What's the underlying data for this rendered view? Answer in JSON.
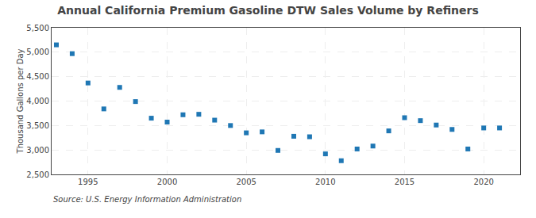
{
  "chart_data": {
    "type": "scatter",
    "title": "Annual California Premium Gasoline DTW Sales Volume by Refiners",
    "ylabel": "Thousand Gallons per Day",
    "annotations": [
      "Source: U.S. Energy Information Administration"
    ],
    "x": [
      1993,
      1994,
      1995,
      1996,
      1997,
      1998,
      1999,
      2000,
      2001,
      2002,
      2003,
      2004,
      2005,
      2006,
      2007,
      2008,
      2009,
      2010,
      2011,
      2012,
      2013,
      2014,
      2015,
      2016,
      2017,
      2018,
      2019,
      2020,
      2021
    ],
    "values": [
      5150,
      4970,
      4370,
      3840,
      4280,
      3990,
      3650,
      3570,
      3720,
      3730,
      3610,
      3500,
      3350,
      3370,
      2990,
      3280,
      3270,
      2920,
      2780,
      3020,
      3080,
      3390,
      3660,
      3600,
      3510,
      3420,
      3020,
      3450,
      3450
    ],
    "marker": "square",
    "xlim": [
      1992.7,
      2022.3
    ],
    "xticks": [
      1995,
      2000,
      2005,
      2010,
      2015,
      2020
    ],
    "ylim": [
      2500,
      5500
    ],
    "yticks": [
      {
        "value": 2500,
        "label": "2,500"
      },
      {
        "value": 3000,
        "label": "3,000"
      },
      {
        "value": 3500,
        "label": "3,500"
      },
      {
        "value": 4000,
        "label": "4,000"
      },
      {
        "value": 4500,
        "label": "4,500"
      },
      {
        "value": 5000,
        "label": "5,000"
      },
      {
        "value": 5500,
        "label": "5,500"
      }
    ],
    "grid": true
  }
}
